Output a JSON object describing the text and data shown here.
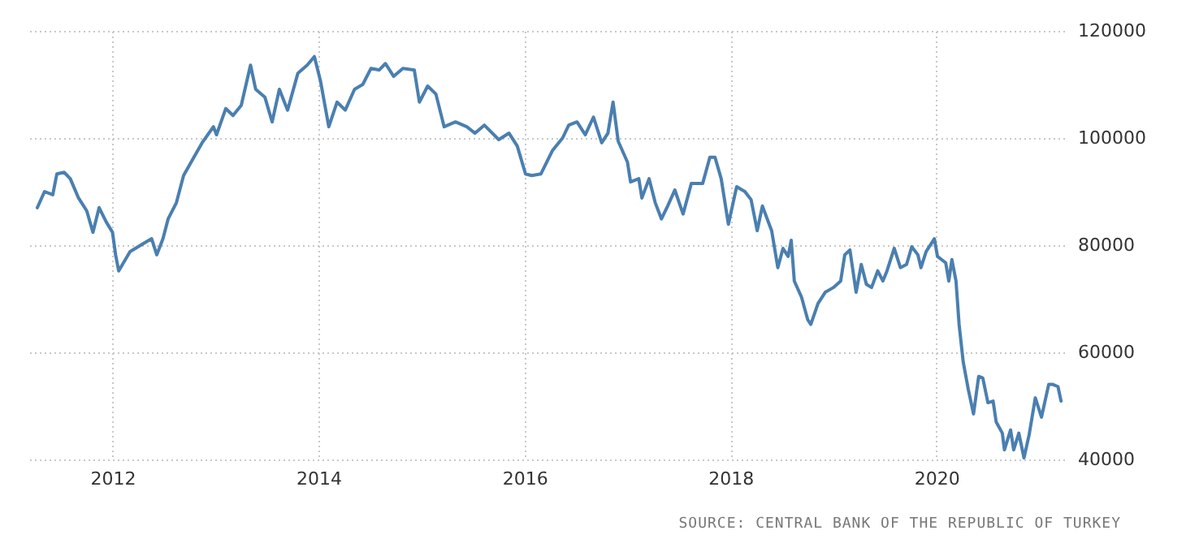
{
  "chart_data": {
    "type": "line",
    "xlim": [
      2011.16,
      2021.24
    ],
    "xticks": [
      2012,
      2014,
      2016,
      2018,
      2020
    ],
    "ylim": [
      40000,
      120000
    ],
    "yticks": [
      40000,
      60000,
      80000,
      100000,
      120000
    ],
    "grid": true,
    "annotations": [
      "SOURCE: CENTRAL BANK OF THE REPUBLIC OF TURKEY"
    ],
    "series": [
      {
        "color": "#4a7fb0",
        "x": [
          2011.27,
          2011.34,
          2011.42,
          2011.46,
          2011.53,
          2011.59,
          2011.67,
          2011.75,
          2011.81,
          2011.87,
          2011.94,
          2012.0,
          2012.03,
          2012.06,
          2012.17,
          2012.3,
          2012.38,
          2012.43,
          2012.49,
          2012.54,
          2012.62,
          2012.69,
          2012.79,
          2012.87,
          2012.98,
          2013.01,
          2013.1,
          2013.17,
          2013.25,
          2013.34,
          2013.39,
          2013.48,
          2013.55,
          2013.62,
          2013.7,
          2013.8,
          2013.89,
          2013.96,
          2014.02,
          2014.1,
          2014.18,
          2014.26,
          2014.35,
          2014.43,
          2014.51,
          2014.59,
          2014.65,
          2014.73,
          2014.82,
          2014.93,
          2014.98,
          2015.06,
          2015.14,
          2015.22,
          2015.33,
          2015.44,
          2015.52,
          2015.61,
          2015.75,
          2015.85,
          2015.93,
          2016.01,
          2016.07,
          2016.16,
          2016.27,
          2016.37,
          2016.43,
          2016.51,
          2016.59,
          2016.67,
          2016.75,
          2016.81,
          2016.86,
          2016.91,
          2017.0,
          2017.03,
          2017.11,
          2017.14,
          2017.21,
          2017.27,
          2017.33,
          2017.39,
          2017.46,
          2017.54,
          2017.62,
          2017.73,
          2017.8,
          2017.85,
          2017.91,
          2017.98,
          2018.06,
          2018.14,
          2018.2,
          2018.26,
          2018.31,
          2018.4,
          2018.46,
          2018.51,
          2018.56,
          2018.59,
          2018.62,
          2018.69,
          2018.75,
          2018.78,
          2018.85,
          2018.92,
          2019.0,
          2019.07,
          2019.11,
          2019.16,
          2019.22,
          2019.27,
          2019.32,
          2019.37,
          2019.43,
          2019.48,
          2019.52,
          2019.59,
          2019.65,
          2019.71,
          2019.76,
          2019.82,
          2019.85,
          2019.9,
          2019.98,
          2020.01,
          2020.09,
          2020.12,
          2020.15,
          2020.19,
          2020.22,
          2020.26,
          2020.31,
          2020.36,
          2020.41,
          2020.45,
          2020.5,
          2020.55,
          2020.58,
          2020.64,
          2020.66,
          2020.72,
          2020.75,
          2020.8,
          2020.85,
          2020.9,
          2020.96,
          2021.02,
          2021.09,
          2021.13,
          2021.18,
          2021.21
        ],
        "values": [
          87000,
          90000,
          89400,
          93300,
          93600,
          92400,
          88800,
          86400,
          82400,
          87000,
          84300,
          82400,
          78200,
          75200,
          78800,
          80300,
          81200,
          78200,
          81200,
          84900,
          87900,
          93000,
          96400,
          99100,
          102100,
          100600,
          105500,
          104200,
          106100,
          113600,
          109100,
          107600,
          103000,
          109100,
          105200,
          112100,
          113600,
          115200,
          110600,
          102100,
          106700,
          105200,
          109100,
          110000,
          113000,
          112700,
          113900,
          111500,
          113000,
          112700,
          106700,
          109700,
          108200,
          102100,
          103000,
          102100,
          100900,
          102400,
          99700,
          100900,
          98500,
          93300,
          93000,
          93300,
          97600,
          100000,
          102400,
          103000,
          100600,
          103900,
          99100,
          100900,
          106700,
          99400,
          95500,
          91800,
          92400,
          88800,
          92400,
          87900,
          84900,
          87300,
          90300,
          85800,
          91500,
          91500,
          96400,
          96400,
          92400,
          83900,
          90900,
          90000,
          88500,
          82700,
          87300,
          82700,
          75800,
          79400,
          77900,
          80900,
          73300,
          70300,
          66100,
          65200,
          69100,
          71200,
          72100,
          73300,
          78200,
          79100,
          71200,
          76400,
          72700,
          72100,
          75200,
          73300,
          75200,
          79400,
          75800,
          76400,
          79700,
          78200,
          75800,
          78800,
          81200,
          77900,
          76700,
          73300,
          77300,
          73300,
          65200,
          58200,
          53000,
          48500,
          55500,
          55200,
          50600,
          50900,
          47000,
          44900,
          41800,
          45500,
          41800,
          44900,
          40300,
          44600,
          51500,
          47900,
          54000,
          54000,
          53600,
          50900
        ]
      }
    ]
  }
}
